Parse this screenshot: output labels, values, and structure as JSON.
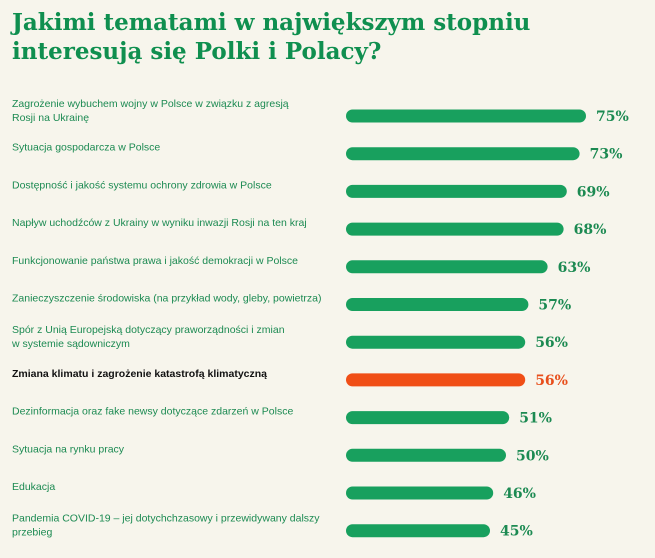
{
  "title": "Jakimi tematami w największym stopniu interesują się Polki i Polacy?",
  "colors": {
    "bar": "#18a05e",
    "highlight": "#f04e16",
    "text": "#1c8a52"
  },
  "chart_data": {
    "type": "bar",
    "orientation": "horizontal",
    "title": "Jakimi tematami w największym stopniu interesują się Polki i Polacy?",
    "unit": "%",
    "highlight_index": 7,
    "categories": [
      "Zagrożenie wybuchem wojny w Polsce w związku z agresją Rosji na Ukrainę",
      "Sytuacja gospodarcza w Polsce",
      "Dostępność i jakość systemu ochrony zdrowia w Polsce",
      "Napływ uchodźców z Ukrainy w wyniku inwazji Rosji na ten kraj",
      "Funkcjonowanie państwa prawa i jakość demokracji w Polsce",
      "Zanieczyszczenie środowiska (na przykład wody, gleby, powietrza)",
      "Spór z Unią Europejską dotyczący praworządności i zmian w systemie sądowniczym",
      "Zmiana klimatu i zagrożenie katastrofą klimatyczną",
      "Dezinformacja oraz fake newsy dotyczące zdarzeń w Polsce",
      "Sytuacja na rynku pracy",
      "Edukacja",
      "Pandemia COVID-19 – jej dotychchzasowy i przewidywany dalszy przebieg"
    ],
    "label_lines": [
      [
        "Zagrożenie wybuchem wojny w Polsce w związku z agresją",
        "Rosji na Ukrainę"
      ],
      [
        "Sytuacja gospodarcza w Polsce"
      ],
      [
        "Dostępność i jakość systemu ochrony zdrowia w Polsce"
      ],
      [
        "Napływ uchodźców z Ukrainy w wyniku inwazji Rosji na ten kraj"
      ],
      [
        "Funkcjonowanie państwa prawa i jakość demokracji w Polsce"
      ],
      [
        "Zanieczyszczenie środowiska (na przykład wody, gleby, powietrza)"
      ],
      [
        "Spór z Unią Europejską dotyczący praworządności i zmian",
        "w systemie sądowniczym"
      ],
      [
        "Zmiana klimatu i zagrożenie katastrofą klimatyczną"
      ],
      [
        "Dezinformacja oraz fake newsy dotyczące zdarzeń w Polsce"
      ],
      [
        "Sytuacja na rynku pracy"
      ],
      [
        "Edukacja"
      ],
      [
        "Pandemia COVID-19 – jej dotychchzasowy i przewidywany dalszy",
        "przebieg"
      ]
    ],
    "values": [
      75,
      73,
      69,
      68,
      63,
      57,
      56,
      56,
      51,
      50,
      46,
      45
    ],
    "value_labels": [
      "75%",
      "73%",
      "69%",
      "68%",
      "63%",
      "57%",
      "56%",
      "56%",
      "51%",
      "50%",
      "46%",
      "45%"
    ],
    "xlim": [
      0,
      100
    ],
    "xlabel": "",
    "ylabel": "",
    "grid": false,
    "legend": "none"
  }
}
